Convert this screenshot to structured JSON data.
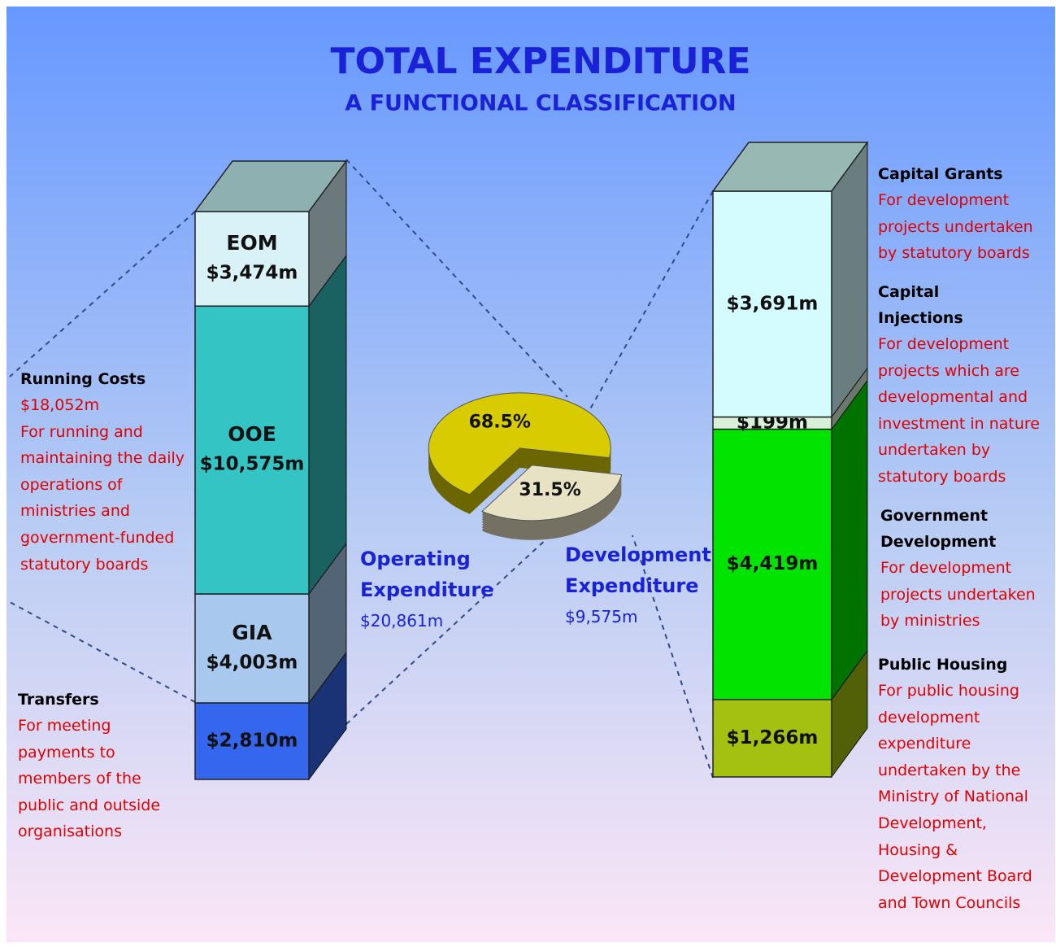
{
  "chart_data": [
    {
      "type": "pie",
      "title": "TOTAL EXPENDITURE",
      "subtitle": "A FUNCTIONAL CLASSIFICATION",
      "values": [
        68.5,
        31.5
      ],
      "value_labels": [
        "68.5%",
        "31.5%"
      ],
      "colors": [
        "#d8cc00",
        "#e8e2c4"
      ]
    },
    {
      "type": "stacked-bar",
      "name": "Operating Expenditure",
      "total": 20861,
      "total_label": "$20,861m",
      "top_color": "#8fb0b0",
      "segments": [
        {
          "value": 2810,
          "value_label": "$2,810m",
          "color": "#3466ee"
        },
        {
          "name": "GIA",
          "value": 4003,
          "value_label": "$4,003m",
          "color": "#a8c8ee"
        },
        {
          "name": "OOE",
          "value": 10575,
          "value_label": "$10,575m",
          "color": "#34c4c4"
        },
        {
          "name": "EOM",
          "value": 3474,
          "value_label": "$3,474m",
          "color": "#d8f2f8"
        }
      ]
    },
    {
      "type": "stacked-bar",
      "name": "Development Expenditure",
      "total": 9575,
      "total_label": "$9,575m",
      "top_color": "#98b8b4",
      "segments": [
        {
          "value": 1266,
          "value_label": "$1,266m",
          "color": "#a4c010"
        },
        {
          "value": 4419,
          "value_label": "$4,419m",
          "color": "#00e400"
        },
        {
          "value": 199,
          "value_label": "$199m",
          "color": "#d8f0d8"
        },
        {
          "value": 3691,
          "value_label": "$3,691m",
          "color": "#d4fcff"
        }
      ]
    }
  ],
  "annotations": [
    {
      "title": "Running Costs",
      "amount": "$18,052m",
      "text": "For running and maintaining the daily operations of ministries and government-funded statutory boards"
    },
    {
      "title": "Transfers",
      "text": "For meeting payments to members of the public and outside organisations"
    },
    {
      "title": "Capital Grants",
      "text": "For development projects undertaken by statutory boards"
    },
    {
      "title": "Capital Injections",
      "text": "For development projects which are developmental and investment in nature undertaken by statutory boards"
    },
    {
      "title": "Government Development",
      "text": "For development projects undertaken by ministries"
    },
    {
      "title": "Public Housing",
      "text": "For public housing development expenditure undertaken by the Ministry of National Development, Housing & Development Board and Town Councils"
    }
  ]
}
